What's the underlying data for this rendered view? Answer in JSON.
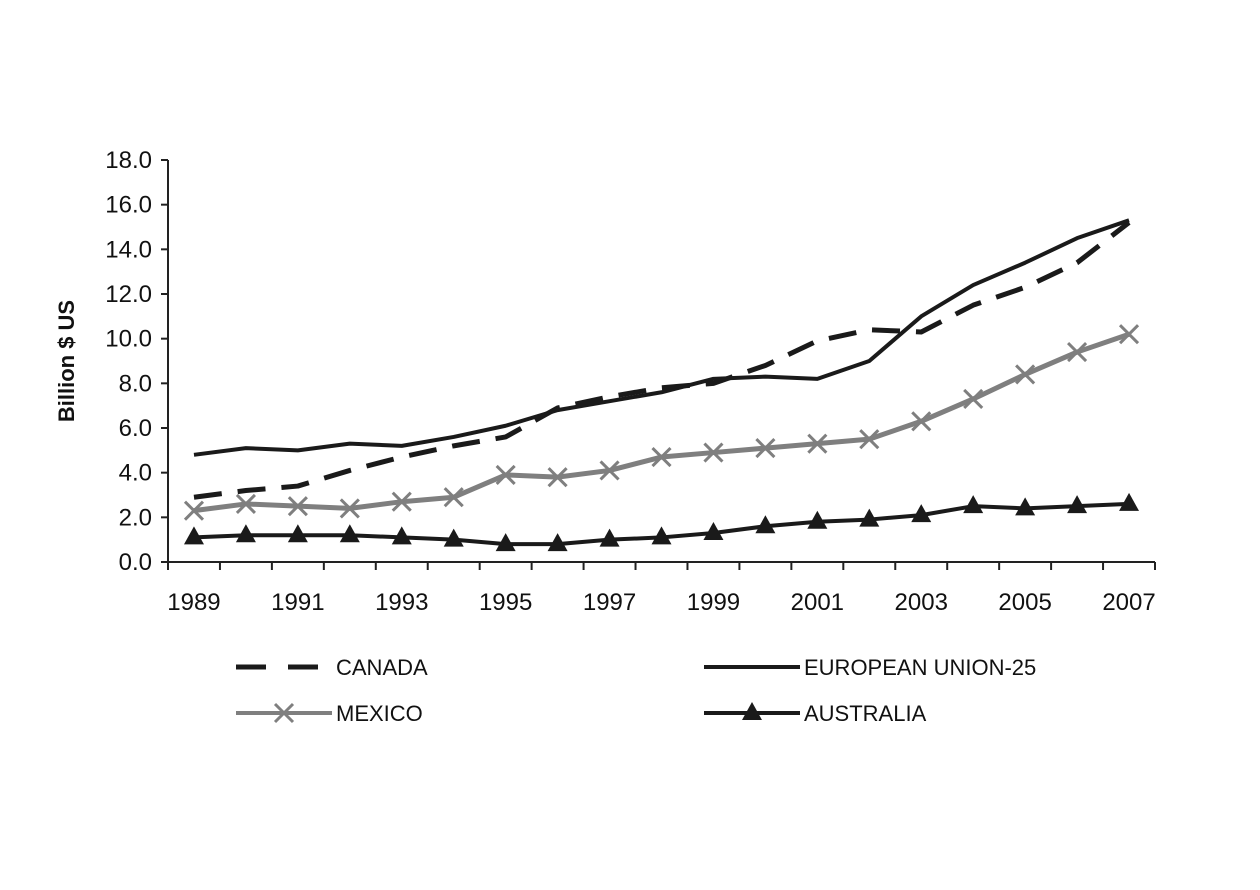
{
  "chart_data": {
    "type": "line",
    "title": "",
    "xlabel": "",
    "ylabel": "Billion $ US",
    "ylim": [
      0,
      18
    ],
    "y_ticks": [
      "0.0",
      "2.0",
      "4.0",
      "6.0",
      "8.0",
      "10.0",
      "12.0",
      "14.0",
      "16.0",
      "18.0"
    ],
    "x_tick_labels": [
      "1989",
      "1991",
      "1993",
      "1995",
      "1997",
      "1999",
      "2001",
      "2003",
      "2005",
      "2007"
    ],
    "x": [
      1989,
      1990,
      1991,
      1992,
      1993,
      1994,
      1995,
      1996,
      1997,
      1998,
      1999,
      2000,
      2001,
      2002,
      2003,
      2004,
      2005,
      2006,
      2007
    ],
    "grid": false,
    "legend_position": "bottom",
    "series": [
      {
        "name": "CANADA",
        "style": "dashed",
        "marker": "none",
        "color": "#1a1a1a",
        "values": [
          2.9,
          3.2,
          3.4,
          4.1,
          4.7,
          5.2,
          5.6,
          6.9,
          7.4,
          7.8,
          8.0,
          8.8,
          9.9,
          10.4,
          10.3,
          11.5,
          12.3,
          13.4,
          15.2
        ]
      },
      {
        "name": "EUROPEAN UNION-25",
        "style": "solid",
        "marker": "none",
        "color": "#1a1a1a",
        "values": [
          4.8,
          5.1,
          5.0,
          5.3,
          5.2,
          5.6,
          6.1,
          6.8,
          7.2,
          7.6,
          8.2,
          8.3,
          8.2,
          9.0,
          11.0,
          12.4,
          13.4,
          14.5,
          15.3
        ]
      },
      {
        "name": "MEXICO",
        "style": "solid",
        "marker": "x",
        "color": "#7f7f7f",
        "values": [
          2.3,
          2.6,
          2.5,
          2.4,
          2.7,
          2.9,
          3.9,
          3.8,
          4.1,
          4.7,
          4.9,
          5.1,
          5.3,
          5.5,
          6.3,
          7.3,
          8.4,
          9.4,
          10.2
        ]
      },
      {
        "name": "AUSTRALIA",
        "style": "solid",
        "marker": "triangle",
        "color": "#1a1a1a",
        "values": [
          1.1,
          1.2,
          1.2,
          1.2,
          1.1,
          1.0,
          0.8,
          0.8,
          1.0,
          1.1,
          1.3,
          1.6,
          1.8,
          1.9,
          2.1,
          2.5,
          2.4,
          2.5,
          2.6
        ]
      }
    ]
  }
}
